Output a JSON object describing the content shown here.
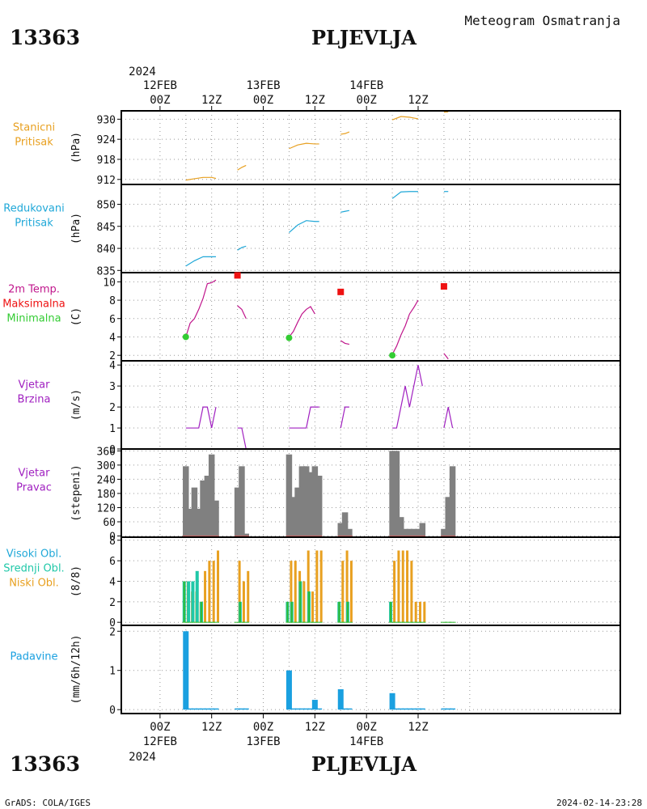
{
  "header": {
    "station_id": "13363",
    "station_name": "PLJEVLJA",
    "product": "Meteogram Osmatranja"
  },
  "footer": {
    "station_id": "13363",
    "station_name": "PLJEVLJA",
    "credit": "GrADS: COLA/IGES",
    "timestamp": "2024-02-14-23:28"
  },
  "time_axis": {
    "hours_range": [
      -9,
      107
    ],
    "top_year": "2024",
    "bottom_year": "2024",
    "ticks": [
      {
        "h": 0,
        "label": "00Z",
        "date": "12FEB"
      },
      {
        "h": 12,
        "label": "12Z"
      },
      {
        "h": 24,
        "label": "00Z",
        "date": "13FEB"
      },
      {
        "h": 36,
        "label": "12Z"
      },
      {
        "h": 48,
        "label": "00Z",
        "date": "14FEB"
      },
      {
        "h": 60,
        "label": "12Z"
      }
    ],
    "grid_hours": [
      0,
      6,
      12,
      18,
      24,
      30,
      36,
      42,
      48,
      54,
      60,
      66,
      72
    ]
  },
  "colors": {
    "station_pressure": "#E8A020",
    "reduced_pressure": "#20A8D8",
    "temp_line": "#C0168C",
    "temp_max": "#EE1111",
    "temp_min": "#33CC33",
    "wind": "#A020C0",
    "wind_dir": "#808080",
    "wind_dir_low": "#C06060",
    "cloud_high": "#33BB33",
    "cloud_mid": "#20C8A8",
    "cloud_low": "#E8A020",
    "precip": "#1AA0E0"
  },
  "chart_data": [
    {
      "id": "station_pressure",
      "type": "line",
      "label_lines": [
        "Stanicni",
        "Pritisak"
      ],
      "unit": "(hPa)",
      "ylim": [
        910.5,
        932.5
      ],
      "yticks": [
        912,
        918,
        924,
        930
      ],
      "series": [
        {
          "segments": [
            [
              [
                6,
                911.8
              ],
              [
                8,
                912.2
              ],
              [
                10,
                912.6
              ],
              [
                12,
                912.6
              ],
              [
                13,
                912.3
              ]
            ],
            [
              [
                18,
                914.8
              ],
              [
                19,
                915.6
              ],
              [
                20,
                916.2
              ]
            ],
            [
              [
                30,
                921.2
              ],
              [
                32,
                922.3
              ],
              [
                34,
                922.8
              ],
              [
                36,
                922.6
              ],
              [
                37,
                922.6
              ]
            ],
            [
              [
                42,
                925.5
              ],
              [
                43,
                925.7
              ],
              [
                44,
                926.2
              ]
            ],
            [
              [
                54,
                929.8
              ],
              [
                56,
                930.8
              ],
              [
                58,
                930.6
              ],
              [
                60,
                930.1
              ]
            ],
            [
              [
                66,
                932.1
              ],
              [
                67,
                932.2
              ]
            ]
          ]
        }
      ]
    },
    {
      "id": "reduced_pressure",
      "type": "line",
      "label_lines": [
        "Redukovani",
        "Pritisak"
      ],
      "unit": "(hPa)",
      "ylim": [
        834.5,
        854.5
      ],
      "yticks": [
        835,
        840,
        845,
        850
      ],
      "series": [
        {
          "segments": [
            [
              [
                6,
                836.0
              ],
              [
                8,
                837.2
              ],
              [
                10,
                838.1
              ],
              [
                12,
                838.1
              ],
              [
                13,
                838.1
              ]
            ],
            [
              [
                18,
                839.6
              ],
              [
                19,
                840.2
              ],
              [
                20,
                840.5
              ]
            ],
            [
              [
                30,
                843.6
              ],
              [
                32,
                845.3
              ],
              [
                34,
                846.3
              ],
              [
                36,
                846.1
              ],
              [
                37,
                846.1
              ]
            ],
            [
              [
                42,
                848.2
              ],
              [
                43,
                848.4
              ],
              [
                44,
                848.6
              ]
            ],
            [
              [
                54,
                851.3
              ],
              [
                56,
                852.8
              ],
              [
                58,
                852.9
              ],
              [
                60,
                852.9
              ]
            ],
            [
              [
                66,
                852.9
              ],
              [
                67,
                852.9
              ]
            ]
          ]
        }
      ]
    },
    {
      "id": "temperature",
      "type": "line",
      "label_lines": [
        "2m Temp.",
        "Maksimalna",
        "Minimalna"
      ],
      "unit": "(C)",
      "ylim": [
        1.4,
        11.0
      ],
      "yticks": [
        2,
        4,
        6,
        8,
        10
      ],
      "series": [
        {
          "name": "2m Temp.",
          "segments": [
            [
              [
                6,
                4.0
              ],
              [
                7,
                5.5
              ],
              [
                8,
                6.0
              ],
              [
                9,
                7.0
              ],
              [
                10,
                8.2
              ],
              [
                11,
                9.8
              ],
              [
                12,
                9.9
              ],
              [
                13,
                10.2
              ]
            ],
            [
              [
                18,
                7.4
              ],
              [
                19,
                7.0
              ],
              [
                20,
                6.0
              ]
            ],
            [
              [
                30,
                4.0
              ],
              [
                31,
                4.6
              ],
              [
                32,
                5.6
              ],
              [
                33,
                6.5
              ],
              [
                34,
                7.0
              ],
              [
                35,
                7.3
              ],
              [
                36,
                6.5
              ]
            ],
            [
              [
                42,
                3.6
              ],
              [
                43,
                3.3
              ],
              [
                44,
                3.2
              ]
            ],
            [
              [
                54,
                2.1
              ],
              [
                55,
                3.0
              ],
              [
                56,
                4.2
              ],
              [
                57,
                5.2
              ],
              [
                58,
                6.5
              ],
              [
                59,
                7.2
              ],
              [
                60,
                8.0
              ]
            ],
            [
              [
                66,
                2.2
              ],
              [
                67,
                1.6
              ]
            ]
          ]
        },
        {
          "name": "Maksimalna",
          "points": [
            [
              18,
              10.7
            ],
            [
              42,
              8.9
            ],
            [
              66,
              9.5
            ]
          ]
        },
        {
          "name": "Minimalna",
          "points": [
            [
              6,
              4.0
            ],
            [
              30,
              3.9
            ],
            [
              54,
              2.0
            ]
          ]
        }
      ]
    },
    {
      "id": "wind_speed",
      "type": "line",
      "label_lines": [
        "Vjetar",
        "Brzina"
      ],
      "unit": "(m/s)",
      "ylim": [
        0,
        4.2
      ],
      "yticks": [
        0,
        1,
        2,
        3,
        4
      ],
      "series": [
        {
          "segments": [
            [
              [
                6,
                1
              ],
              [
                9,
                1
              ],
              [
                10,
                2
              ],
              [
                11,
                2
              ],
              [
                12,
                1
              ],
              [
                13,
                2
              ]
            ],
            [
              [
                18,
                1
              ],
              [
                19,
                1
              ],
              [
                20,
                0
              ]
            ],
            [
              [
                30,
                1
              ],
              [
                34,
                1
              ],
              [
                35,
                2
              ],
              [
                37,
                2
              ]
            ],
            [
              [
                42,
                1
              ],
              [
                43,
                2
              ],
              [
                44,
                2
              ]
            ],
            [
              [
                54,
                1
              ],
              [
                55,
                1
              ],
              [
                56,
                2
              ],
              [
                57,
                3
              ],
              [
                58,
                2
              ],
              [
                60,
                4
              ],
              [
                61,
                3
              ]
            ],
            [
              [
                66,
                1
              ],
              [
                67,
                2
              ],
              [
                68,
                1
              ]
            ]
          ]
        }
      ]
    },
    {
      "id": "wind_direction",
      "type": "bar",
      "label_lines": [
        "Vjetar",
        "Pravac"
      ],
      "unit": "(stepeni)",
      "ylim": [
        -5,
        368
      ],
      "yticks": [
        0,
        60,
        120,
        180,
        240,
        300,
        360
      ],
      "x": [
        6,
        7,
        8,
        9,
        10,
        11,
        12,
        13,
        18,
        19,
        20,
        30,
        31,
        32,
        33,
        34,
        35,
        36,
        37,
        42,
        43,
        44,
        54,
        55,
        56,
        57,
        58,
        59,
        60,
        61,
        66,
        67,
        68
      ],
      "values": [
        295,
        115,
        205,
        115,
        235,
        255,
        345,
        150,
        205,
        295,
        10,
        345,
        165,
        205,
        295,
        295,
        270,
        295,
        255,
        55,
        100,
        30,
        360,
        360,
        80,
        30,
        30,
        30,
        30,
        55,
        30,
        165,
        295
      ]
    },
    {
      "id": "clouds",
      "type": "bar",
      "label_lines": [
        "Visoki Obl.",
        "Srednji Obl.",
        "Niski Obl."
      ],
      "unit": "(8/8)",
      "ylim": [
        -0.3,
        8.3
      ],
      "yticks": [
        0,
        2,
        4,
        6,
        8
      ],
      "x": [
        6,
        7,
        8,
        9,
        10,
        11,
        12,
        13,
        18,
        19,
        20,
        30,
        31,
        32,
        33,
        34,
        35,
        36,
        37,
        42,
        43,
        44,
        54,
        55,
        56,
        57,
        58,
        59,
        60,
        61,
        66,
        67,
        68
      ],
      "series": [
        {
          "name": "Visoki Obl.",
          "values": [
            4,
            0,
            0,
            0,
            2,
            0,
            0,
            0,
            0,
            2,
            0,
            2,
            2,
            0,
            4,
            0,
            3,
            0,
            0,
            2,
            0,
            2,
            2,
            0,
            0,
            0,
            0,
            0,
            0,
            0,
            0,
            0,
            0
          ]
        },
        {
          "name": "Srednji Obl.",
          "values": [
            4,
            4,
            4,
            5,
            2,
            0,
            0,
            0,
            0,
            2,
            0,
            2,
            2,
            0,
            4,
            0,
            3,
            0,
            0,
            2,
            0,
            2,
            2,
            0,
            0,
            0,
            0,
            0,
            0,
            0,
            0,
            0,
            0
          ]
        },
        {
          "name": "Niski Obl.",
          "values": [
            4,
            3,
            3,
            2,
            5,
            6,
            6,
            7,
            6,
            4,
            5,
            6,
            6,
            5,
            4,
            7,
            3,
            7,
            7,
            6,
            7,
            6,
            6,
            7,
            7,
            7,
            6,
            2,
            2,
            2,
            0,
            0,
            0
          ]
        }
      ]
    },
    {
      "id": "precipitation",
      "type": "bar",
      "label_lines": [
        "Padavine"
      ],
      "unit": "(mm/6h/12h)",
      "ylim": [
        -0.1,
        2.15
      ],
      "yticks": [
        0,
        1,
        2
      ],
      "x": [
        6,
        7,
        8,
        9,
        10,
        11,
        12,
        13,
        18,
        19,
        20,
        30,
        31,
        32,
        33,
        34,
        35,
        36,
        37,
        42,
        43,
        44,
        54,
        55,
        56,
        57,
        58,
        59,
        60,
        61,
        66,
        67,
        68
      ],
      "values": [
        2.0,
        0.02,
        0.02,
        0.02,
        0.02,
        0.02,
        0.02,
        0.02,
        0.02,
        0.02,
        0.02,
        1.0,
        0.02,
        0.02,
        0.02,
        0.02,
        0.02,
        0.25,
        0.02,
        0.52,
        0.02,
        0.02,
        0.42,
        0.02,
        0.02,
        0.02,
        0.02,
        0.02,
        0.02,
        0.02,
        0.02,
        0.02,
        0.02
      ]
    }
  ]
}
